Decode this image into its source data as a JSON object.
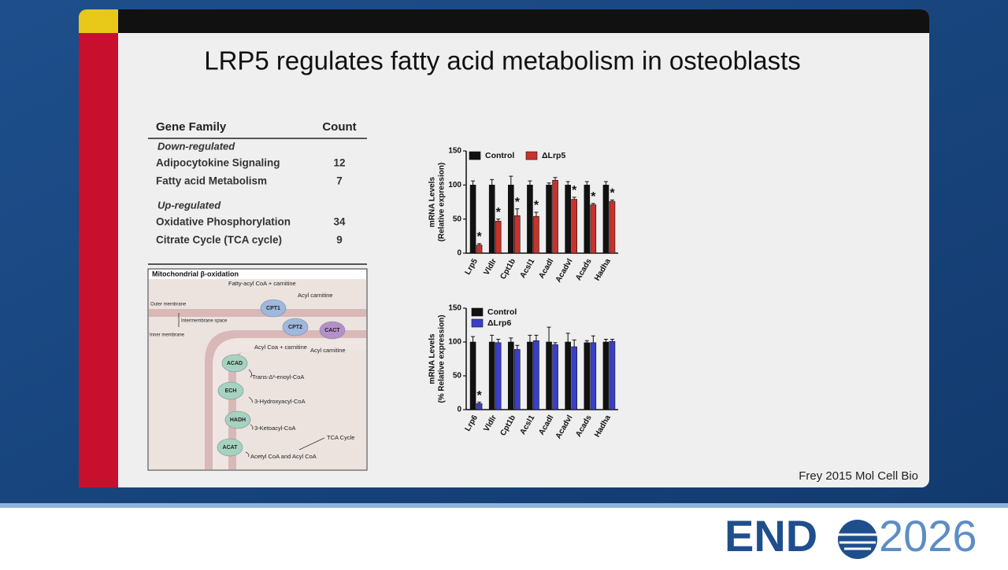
{
  "slide": {
    "title": "LRP5 regulates fatty acid metabolism in osteoblasts",
    "citation": "Frey 2015 Mol Cell Bio"
  },
  "logo": {
    "left": "END",
    "right": "2026"
  },
  "table": {
    "header": [
      "Gene Family",
      "Count"
    ],
    "groups": [
      {
        "name": "Down-regulated",
        "rows": [
          [
            "Adipocytokine Signaling",
            12
          ],
          [
            "Fatty acid Metabolism",
            7
          ]
        ]
      },
      {
        "name": "Up-regulated",
        "rows": [
          [
            "Oxidative Phosphorylation",
            34
          ],
          [
            "Citrate Cycle (TCA cycle)",
            9
          ]
        ]
      }
    ]
  },
  "diagram": {
    "title": "Mitochondrial β-oxidation",
    "labels": [
      "Fatty-acyl CoA + carnitine",
      "Acyl carnitine",
      "Outer membrane",
      "Intermembrane space",
      "Inner membrane",
      "Acyl Coa + carnitine",
      "Acyl carnitine",
      "Trans-Δ²-enoyl-CoA",
      "3-Hydroxyacyl-CoA",
      "3-Ketoacyl-CoA",
      "TCA Cycle",
      "Acetyl CoA and Acyl CoA"
    ],
    "enzymes": [
      "CPT1",
      "CPT2",
      "CACT",
      "ACAD",
      "ECH",
      "HADH",
      "ACAT"
    ]
  },
  "chart_data": [
    {
      "type": "bar",
      "y_label": [
        "mRNA Levels",
        "(Relative expression)"
      ],
      "legend_layout": "row",
      "categories": [
        "Lrp5",
        "Vldlr",
        "Cpt1b",
        "Acsl1",
        "Acadl",
        "Acadvl",
        "Acads",
        "Hadha"
      ],
      "ylim": [
        0,
        150
      ],
      "yticks": [
        0,
        50,
        100,
        150
      ],
      "series": [
        {
          "name": "Control",
          "color": "#111111",
          "values": [
            100,
            100,
            100,
            100,
            100,
            100,
            100,
            100
          ],
          "errors": [
            6,
            8,
            13,
            6,
            3,
            5,
            5,
            5
          ]
        },
        {
          "name": "ΔLrp5",
          "color": "#c8322c",
          "values": [
            12,
            47,
            55,
            54,
            107,
            79,
            71,
            76
          ],
          "errors": [
            2,
            3,
            10,
            6,
            4,
            3,
            2,
            2
          ],
          "labels": [
            "*",
            "*",
            "*",
            "*",
            null,
            "*",
            "*",
            "*"
          ]
        }
      ]
    },
    {
      "type": "bar",
      "y_label": [
        "mRNA Levels",
        "(% Relative expression)"
      ],
      "legend_layout": "column",
      "categories": [
        "Lrp6",
        "Vldlr",
        "Cpt1b",
        "Acsl1",
        "Acadl",
        "Acadvl",
        "Acads",
        "Hadha"
      ],
      "ylim": [
        0,
        150
      ],
      "yticks": [
        0,
        50,
        100,
        150
      ],
      "series": [
        {
          "name": "Control",
          "color": "#111111",
          "values": [
            100,
            100,
            100,
            100,
            100,
            100,
            99,
            100
          ],
          "errors": [
            8,
            10,
            6,
            10,
            22,
            13,
            3,
            4
          ]
        },
        {
          "name": "ΔLrp6",
          "color": "#3a3fc8",
          "values": [
            9,
            99,
            89,
            102,
            96,
            93,
            99,
            101
          ],
          "errors": [
            2,
            5,
            6,
            8,
            3,
            10,
            10,
            3
          ],
          "labels": [
            "*",
            null,
            null,
            null,
            null,
            null,
            null,
            null
          ]
        }
      ]
    }
  ]
}
